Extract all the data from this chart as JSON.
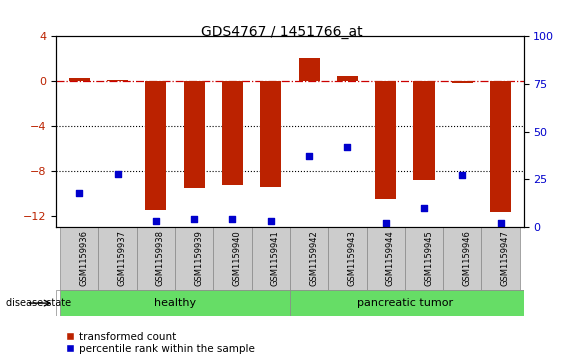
{
  "title": "GDS4767 / 1451766_at",
  "samples": [
    "GSM1159936",
    "GSM1159937",
    "GSM1159938",
    "GSM1159939",
    "GSM1159940",
    "GSM1159941",
    "GSM1159942",
    "GSM1159943",
    "GSM1159944",
    "GSM1159945",
    "GSM1159946",
    "GSM1159947"
  ],
  "bar_values": [
    0.3,
    0.1,
    -11.5,
    -9.5,
    -9.3,
    -9.4,
    2.1,
    0.5,
    -10.5,
    -8.8,
    -0.2,
    -11.7
  ],
  "dot_values_pct": [
    18,
    28,
    3,
    4,
    4,
    3,
    37,
    42,
    2,
    10,
    27,
    2
  ],
  "ylim_left": [
    -13,
    4
  ],
  "ylim_right": [
    0,
    100
  ],
  "yticks_left": [
    4,
    0,
    -4,
    -8,
    -12
  ],
  "yticks_right": [
    100,
    75,
    50,
    25,
    0
  ],
  "bar_color": "#BB2200",
  "dot_color": "#0000CC",
  "hline_color": "#CC0000",
  "dotted_lines": [
    -4,
    -8
  ],
  "n_healthy": 6,
  "group_bar_color": "#66DD66",
  "group_bar_color_light": "#AAFFAA",
  "bar_width": 0.55,
  "dot_size": 25,
  "legend_red_label": "transformed count",
  "legend_blue_label": "percentile rank within the sample",
  "disease_state_label": "disease state",
  "healthy_label": "healthy",
  "tumor_label": "pancreatic tumor"
}
